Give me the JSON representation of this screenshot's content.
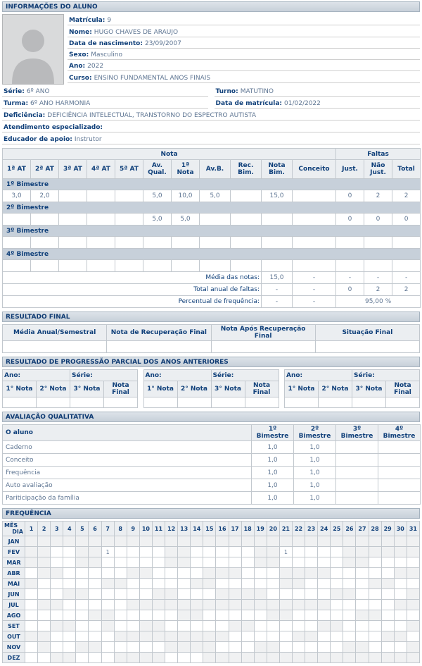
{
  "colors": {
    "header_text": "#0e3a72",
    "value_text": "#5f7693",
    "section_bar_bg": "#cdd5dd",
    "bimestre_band_bg": "#c7d0da",
    "table_header_bg": "#ebeef1",
    "non_school_day_bg": "#f0f1f2",
    "table_border": "#c2c8ce"
  },
  "icons": {
    "photo_placeholder": "person-silhouette"
  },
  "student_info": {
    "section_title": "INFORMAÇÕES DO ALUNO",
    "fields": [
      {
        "label": "Matrícula:",
        "value": "9"
      },
      {
        "label": "Nome:",
        "value": "HUGO CHAVES DE ARAUJO"
      },
      {
        "label": "Data de nascimento:",
        "value": "23/09/2007"
      },
      {
        "label": "Sexo:",
        "value": "Masculino"
      },
      {
        "label": "Ano:",
        "value": "2022"
      },
      {
        "label": "Curso:",
        "value": "ENSINO FUNDAMENTAL ANOS FINAIS"
      }
    ],
    "fields_two_col": [
      {
        "left": {
          "label": "Série:",
          "value": "6º ANO"
        },
        "right": {
          "label": "Turno:",
          "value": "MATUTINO"
        }
      },
      {
        "left": {
          "label": "Turma:",
          "value": "6º ANO HARMONIA"
        },
        "right": {
          "label": "Data de matrícula:",
          "value": "01/02/2022"
        }
      }
    ],
    "fields_full_width": [
      {
        "label": "Deficiência:",
        "value": "DEFICIÊNCIA INTELECTUAL, TRANSTORNO DO ESPECTRO AUTISTA"
      },
      {
        "label": "Atendimento especializado:",
        "value": ""
      },
      {
        "label": "Educador de apoio:",
        "value": "Instrutor"
      }
    ]
  },
  "grades": {
    "group_headers": [
      {
        "label": "Nota",
        "span": 11
      },
      {
        "label": "Faltas",
        "span": 3
      }
    ],
    "columns": [
      "1ª AT",
      "2ª AT",
      "3ª AT",
      "4ª AT",
      "5ª AT",
      "Av.\nQual.",
      "1ª Nota",
      "Av.B.",
      "Rec.\nBim.",
      "Nota\nBim.",
      "Conceito",
      "Just.",
      "Não\nJust.",
      "Total"
    ],
    "bimestre_rows": [
      {
        "label": "1º Bimestre",
        "values": [
          "3,0",
          "2,0",
          "",
          "",
          "",
          "5,0",
          "10,0",
          "5,0",
          "",
          "15,0",
          "",
          "0",
          "2",
          "2"
        ]
      },
      {
        "label": "2º Bimestre",
        "values": [
          "",
          "",
          "",
          "",
          "",
          "5,0",
          "5,0",
          "",
          "",
          "",
          "",
          "0",
          "0",
          "0"
        ]
      },
      {
        "label": "3º Bimestre",
        "values": [
          "",
          "",
          "",
          "",
          "",
          "",
          "",
          "",
          "",
          "",
          "",
          "",
          "",
          ""
        ]
      },
      {
        "label": "4º Bimestre",
        "values": [
          "",
          "",
          "",
          "",
          "",
          "",
          "",
          "",
          "",
          "",
          "",
          "",
          "",
          ""
        ]
      }
    ],
    "summary_rows": [
      {
        "label": "Média das notas:",
        "cells": [
          {
            "text": "15,0"
          },
          {
            "text": "-"
          },
          {
            "text": "-"
          },
          {
            "text": "-"
          },
          {
            "text": "-"
          }
        ]
      },
      {
        "label": "Total anual de faltas:",
        "cells": [
          {
            "text": "-"
          },
          {
            "text": "-"
          },
          {
            "text": "0"
          },
          {
            "text": "2"
          },
          {
            "text": "2"
          }
        ]
      },
      {
        "label": "Percentual de frequência:",
        "cells": [
          {
            "text": "-"
          },
          {
            "text": "-"
          },
          {
            "text": "95,00 %",
            "span": 3
          }
        ]
      }
    ]
  },
  "resultado_final": {
    "section_title": "RESULTADO FINAL",
    "columns": [
      "Média Anual/Semestral",
      "Nota de Recuperação Final",
      "Nota Após Recuperação Final",
      "Situação Final"
    ],
    "values": [
      "",
      "",
      "",
      ""
    ]
  },
  "progressao": {
    "section_title": "RESULTADO DE PROGRESSÃO PARCIAL DOS ANOS ANTERIORES",
    "tables": [
      {
        "ano_label": "Ano:",
        "ano_value": "",
        "serie_label": "Série:",
        "serie_value": "",
        "columns": [
          "1° Nota",
          "2° Nota",
          "3° Nota",
          "Nota Final"
        ],
        "values": [
          "",
          "",
          "",
          ""
        ]
      },
      {
        "ano_label": "Ano:",
        "ano_value": "",
        "serie_label": "Série:",
        "serie_value": "",
        "columns": [
          "1° Nota",
          "2° Nota",
          "3° Nota",
          "Nota Final"
        ],
        "values": [
          "",
          "",
          "",
          ""
        ]
      },
      {
        "ano_label": "Ano:",
        "ano_value": "",
        "serie_label": "Série:",
        "serie_value": "",
        "columns": [
          "1° Nota",
          "2° Nota",
          "3° Nota",
          "Nota Final"
        ],
        "values": [
          "",
          "",
          "",
          ""
        ]
      }
    ]
  },
  "qualitativa": {
    "section_title": "AVALIAÇÃO QUALITATIVA",
    "header": [
      "O aluno",
      "1º Bimestre",
      "2º Bimestre",
      "3º Bimestre",
      "4º Bimestre"
    ],
    "rows": [
      {
        "label": "Caderno",
        "values": [
          "1,0",
          "1,0",
          "",
          ""
        ]
      },
      {
        "label": "Conceito",
        "values": [
          "1,0",
          "1,0",
          "",
          ""
        ]
      },
      {
        "label": "Frequência",
        "values": [
          "1,0",
          "1,0",
          "",
          ""
        ]
      },
      {
        "label": "Auto avaliação",
        "values": [
          "1,0",
          "1,0",
          "",
          ""
        ]
      },
      {
        "label": "Pariticipação da família",
        "values": [
          "1,0",
          "1,0",
          "",
          ""
        ]
      }
    ]
  },
  "frequencia": {
    "section_title": "FREQUÊNCIA",
    "corner_top": "MÊS",
    "corner_bottom": "DIA",
    "day_headers": [
      1,
      2,
      3,
      4,
      5,
      6,
      7,
      8,
      9,
      10,
      11,
      12,
      13,
      14,
      15,
      16,
      17,
      18,
      19,
      20,
      21,
      22,
      23,
      24,
      25,
      26,
      27,
      28,
      29,
      30,
      31
    ],
    "months": [
      {
        "label": "JAN",
        "non_school_days": [
          1,
          2,
          3,
          4,
          5,
          6,
          7,
          8,
          9,
          10,
          11,
          12,
          13,
          14,
          15,
          16,
          17,
          18,
          19,
          20,
          21,
          22,
          23,
          24,
          25,
          26,
          27,
          28,
          29,
          30,
          31
        ],
        "marks": {}
      },
      {
        "label": "FEV",
        "non_school_days": [
          1,
          2,
          5,
          6,
          12,
          13,
          19,
          20,
          26,
          27,
          28,
          29,
          30,
          31
        ],
        "marks": {
          "7": "1",
          "21": "1"
        }
      },
      {
        "label": "MAR",
        "non_school_days": [
          1,
          2,
          5,
          6,
          12,
          13,
          19,
          20,
          26,
          27
        ],
        "marks": {}
      },
      {
        "label": "ABR",
        "non_school_days": [
          2,
          3,
          9,
          10,
          15,
          16,
          17,
          21,
          22,
          23,
          24,
          30,
          31
        ],
        "marks": {}
      },
      {
        "label": "MAI",
        "non_school_days": [
          1,
          7,
          8,
          14,
          15,
          21,
          22,
          28,
          29
        ],
        "marks": {}
      },
      {
        "label": "JUN",
        "non_school_days": [
          4,
          5,
          11,
          12,
          16,
          17,
          18,
          19,
          25,
          26,
          31
        ],
        "marks": {}
      },
      {
        "label": "JUL",
        "non_school_days": [
          2,
          3,
          9,
          10,
          11,
          12,
          13,
          14,
          15,
          16,
          17,
          18,
          19,
          20,
          21,
          22,
          23,
          24,
          30,
          31
        ],
        "marks": {}
      },
      {
        "label": "AGO",
        "non_school_days": [
          6,
          7,
          13,
          14,
          20,
          21,
          27,
          28
        ],
        "marks": {}
      },
      {
        "label": "SET",
        "non_school_days": [
          3,
          4,
          7,
          10,
          11,
          17,
          18,
          24,
          25,
          31
        ],
        "marks": {}
      },
      {
        "label": "OUT",
        "non_school_days": [
          1,
          2,
          8,
          9,
          10,
          11,
          12,
          13,
          14,
          15,
          16,
          22,
          23,
          29,
          30
        ],
        "marks": {}
      },
      {
        "label": "NOV",
        "non_school_days": [
          2,
          5,
          6,
          12,
          13,
          14,
          15,
          19,
          20,
          26,
          27,
          31
        ],
        "marks": {}
      },
      {
        "label": "DEZ",
        "non_school_days": [
          3,
          4,
          8,
          9,
          10,
          11,
          15,
          16,
          17,
          18,
          19,
          20,
          21,
          22,
          23,
          24,
          25,
          26,
          27,
          28,
          29,
          30,
          31
        ],
        "marks": {}
      }
    ]
  }
}
